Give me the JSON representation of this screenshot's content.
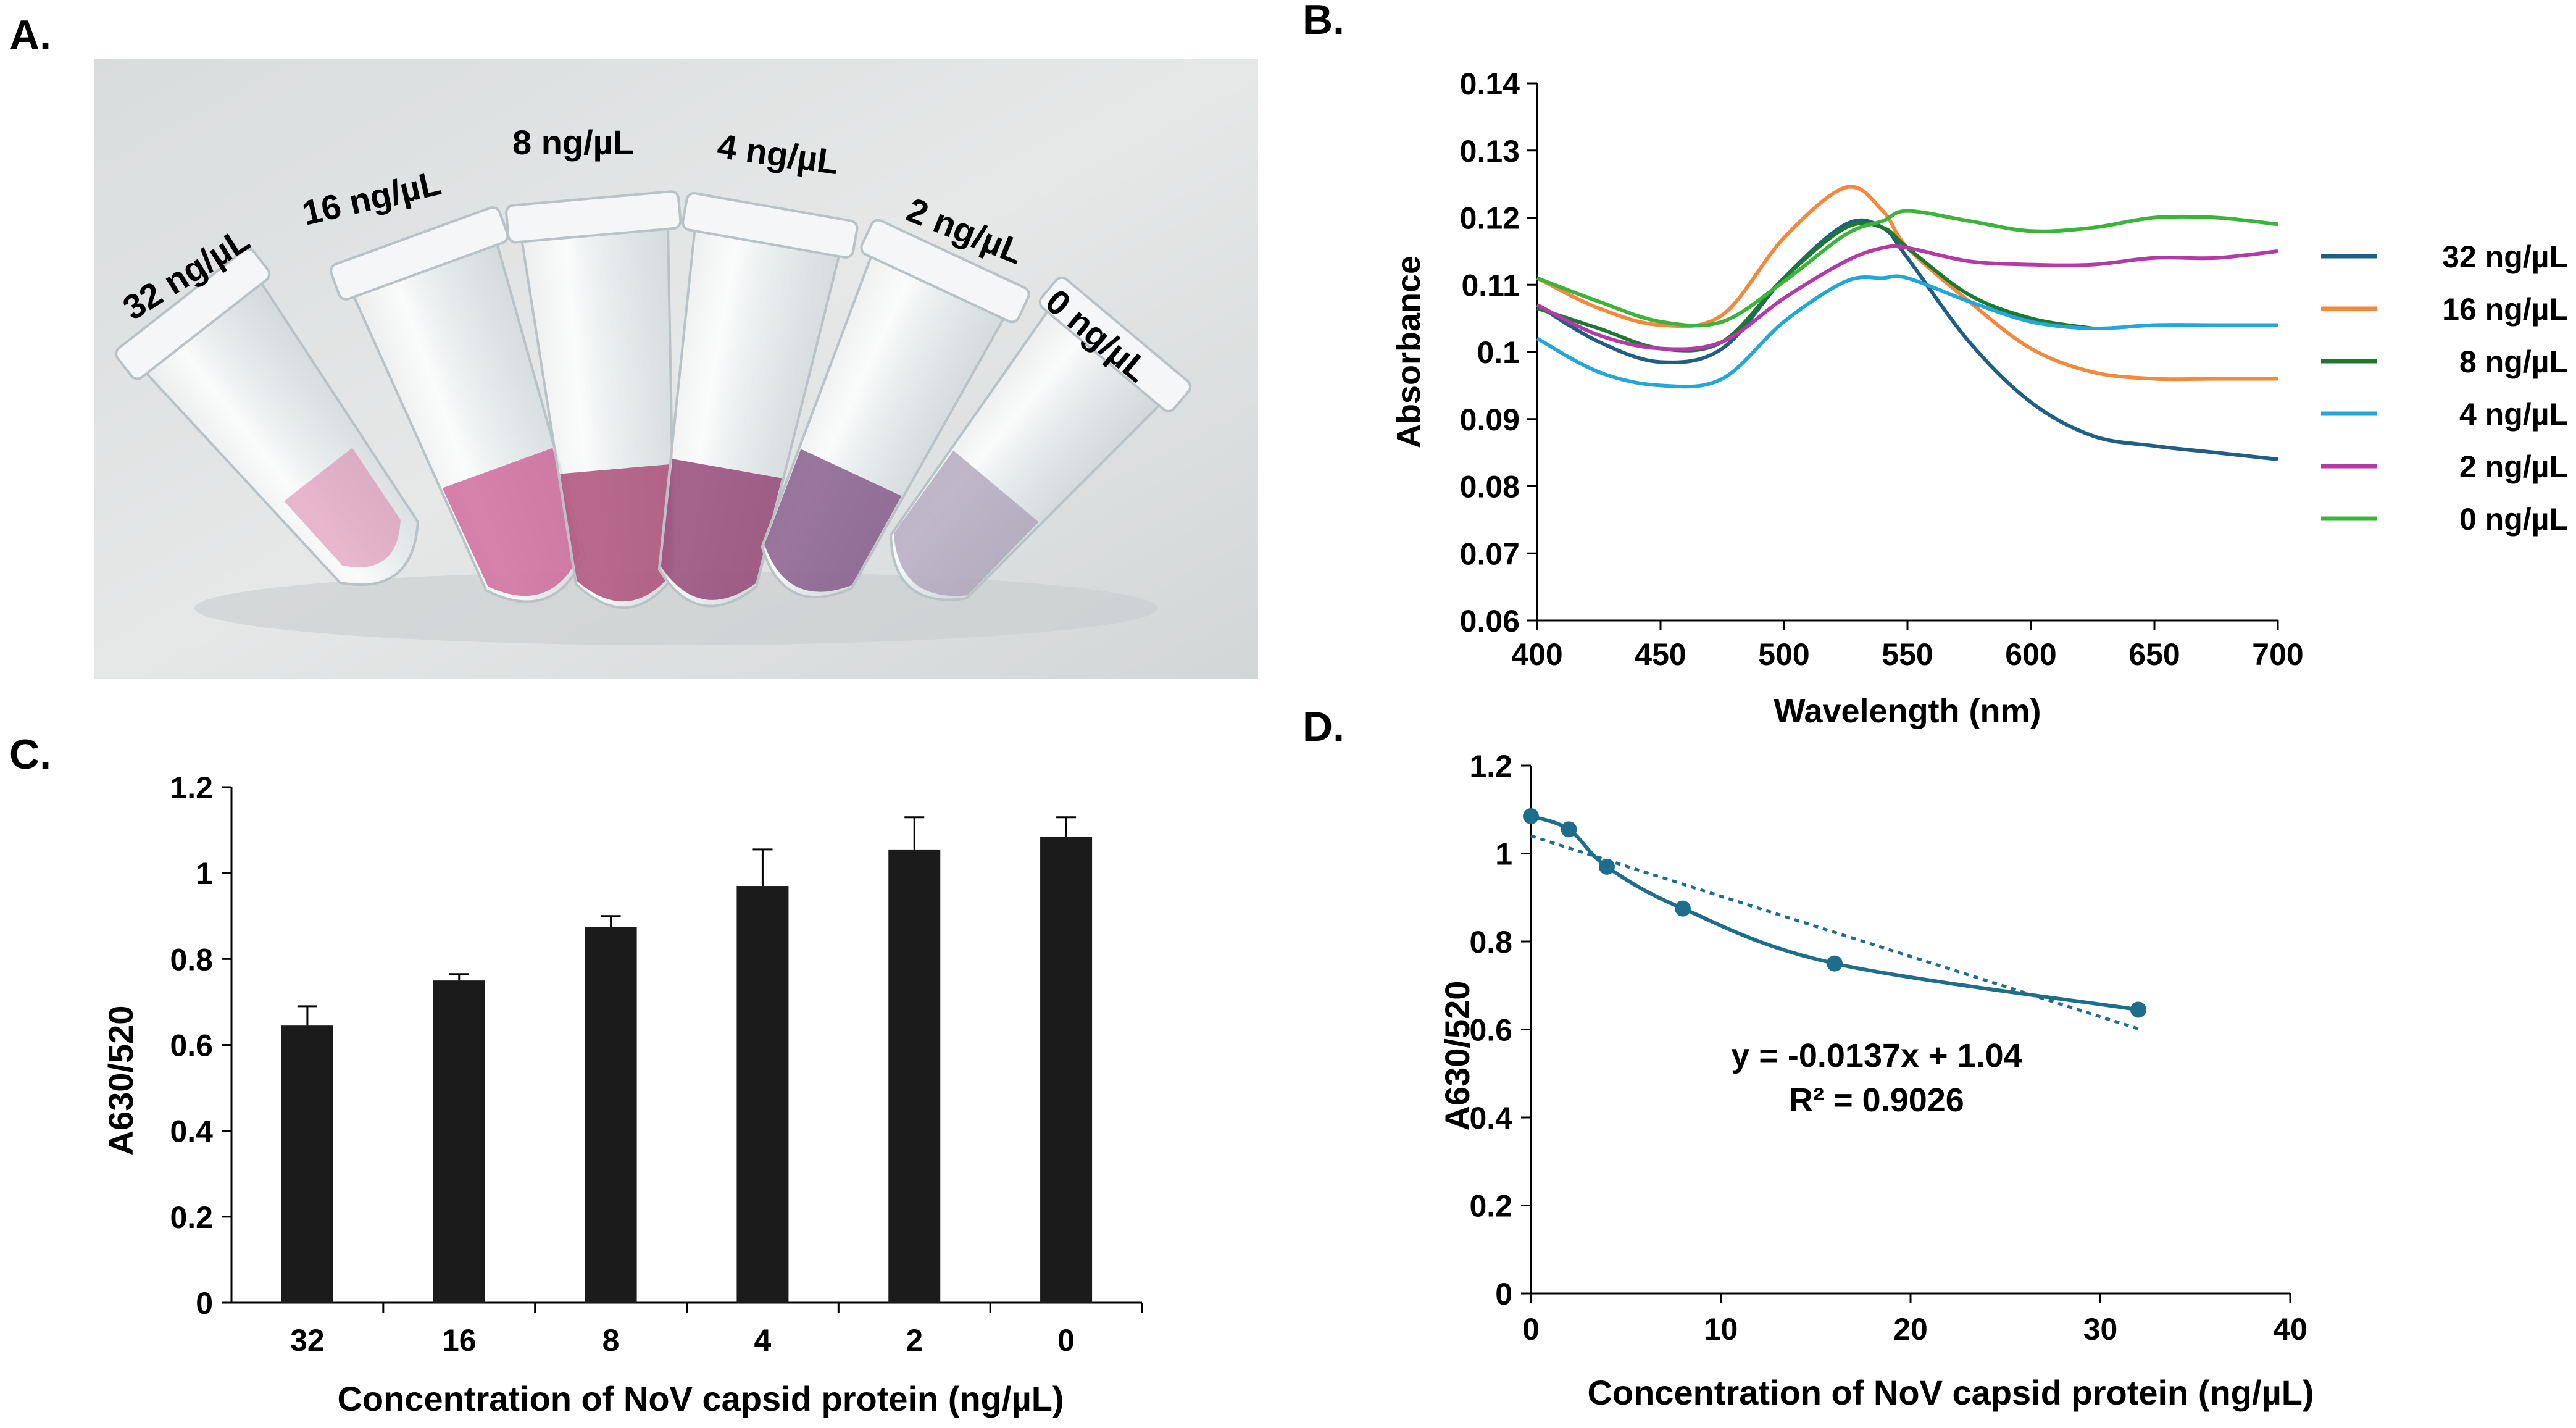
{
  "panels": {
    "a": {
      "letter": "A.",
      "tube_labels": [
        "32 ng/µL",
        "16 ng/µL",
        "8 ng/µL",
        "4 ng/µL",
        "2 ng/µL",
        "0 ng/µL"
      ]
    },
    "b": {
      "letter": "B."
    },
    "c": {
      "letter": "C."
    },
    "d": {
      "letter": "D."
    }
  },
  "colors": {
    "32": "#1f5f86",
    "16": "#f6883c",
    "8": "#1b7a2e",
    "4": "#22a7dd",
    "2": "#b43aa8",
    "0": "#3ab53a",
    "bar": "#1b1b1b",
    "d_line": "#1c6e8c"
  },
  "chart_data": [
    {
      "id": "B",
      "type": "line",
      "title": "",
      "xlabel": "Wavelength (nm)",
      "ylabel": "Absorbance",
      "xlim": [
        400,
        700
      ],
      "ylim": [
        0.06,
        0.14
      ],
      "xticks": [
        400,
        450,
        500,
        550,
        600,
        650,
        700
      ],
      "yticks": [
        0.06,
        0.07,
        0.08,
        0.09,
        0.1,
        0.11,
        0.12,
        0.13,
        0.14
      ],
      "ytick_labels": [
        "0.06",
        "0.07",
        "0.08",
        "0.09",
        "0.1",
        "0.11",
        "0.12",
        "0.13",
        "0.14"
      ],
      "legend_position": "right",
      "x": [
        400,
        425,
        450,
        475,
        500,
        525,
        540,
        550,
        575,
        600,
        625,
        650,
        675,
        700
      ],
      "series": [
        {
          "name": "32 ng/µL",
          "color_key": "32",
          "values": [
            0.107,
            0.1015,
            0.0985,
            0.1005,
            0.111,
            0.119,
            0.1185,
            0.114,
            0.1015,
            0.0925,
            0.0875,
            0.086,
            0.085,
            0.084
          ]
        },
        {
          "name": "16 ng/µL",
          "color_key": "16",
          "values": [
            0.111,
            0.1065,
            0.104,
            0.1055,
            0.117,
            0.1245,
            0.121,
            0.1155,
            0.1075,
            0.1005,
            0.097,
            0.096,
            0.096,
            0.096
          ]
        },
        {
          "name": "8 ng/µL",
          "color_key": "8",
          "values": [
            0.1065,
            0.1035,
            0.1005,
            0.1015,
            0.111,
            0.1185,
            0.1185,
            0.1155,
            0.1085,
            0.105,
            0.1035,
            null,
            null,
            null
          ]
        },
        {
          "name": "4 ng/µL",
          "color_key": "4",
          "values": [
            0.102,
            0.097,
            0.095,
            0.096,
            0.1045,
            0.1105,
            0.111,
            0.111,
            0.1075,
            0.1045,
            0.1035,
            0.104,
            0.104,
            0.104
          ]
        },
        {
          "name": "2 ng/µL",
          "color_key": "2",
          "values": [
            0.107,
            0.1025,
            0.1005,
            0.1015,
            0.108,
            0.1135,
            0.1155,
            0.1155,
            0.1135,
            0.113,
            0.113,
            0.114,
            0.114,
            0.115
          ]
        },
        {
          "name": "0 ng/µL",
          "color_key": "0",
          "values": [
            0.111,
            0.1075,
            0.1045,
            0.1045,
            0.1105,
            0.1175,
            0.1195,
            0.121,
            0.1195,
            0.118,
            0.1185,
            0.12,
            0.12,
            0.119
          ]
        }
      ]
    },
    {
      "id": "C",
      "type": "bar",
      "title": "",
      "xlabel": "Concentration of NoV capsid protein (ng/µL)",
      "ylabel": "A630/520",
      "ylim": [
        0,
        1.2
      ],
      "yticks": [
        0,
        0.2,
        0.4,
        0.6,
        0.8,
        1,
        1.2
      ],
      "ytick_labels": [
        "0",
        "0.2",
        "0.4",
        "0.6",
        "0.8",
        "1",
        "1.2"
      ],
      "categories": [
        "32",
        "16",
        "8",
        "4",
        "2",
        "0"
      ],
      "values": [
        0.645,
        0.75,
        0.875,
        0.97,
        1.055,
        1.085
      ],
      "errors": [
        0.045,
        0.015,
        0.025,
        0.085,
        0.075,
        0.045
      ]
    },
    {
      "id": "D",
      "type": "scatter",
      "title": "",
      "xlabel": "Concentration of NoV capsid protein (ng/µL)",
      "ylabel": "A630/520",
      "xlim": [
        0,
        40
      ],
      "ylim": [
        0,
        1.2
      ],
      "xticks": [
        0,
        10,
        20,
        30,
        40
      ],
      "yticks": [
        0,
        0.2,
        0.4,
        0.6,
        0.8,
        1,
        1.2
      ],
      "ytick_labels": [
        "0",
        "0.2",
        "0.4",
        "0.6",
        "0.8",
        "1",
        "1.2"
      ],
      "x": [
        0,
        2,
        4,
        8,
        16,
        32
      ],
      "y": [
        1.085,
        1.055,
        0.97,
        0.875,
        0.75,
        0.645
      ],
      "trendline": {
        "slope": -0.0137,
        "intercept": 1.04,
        "x_range": [
          0,
          32
        ]
      },
      "equation": "y = -0.0137x + 1.04",
      "r_squared": "R² = 0.9026"
    }
  ]
}
